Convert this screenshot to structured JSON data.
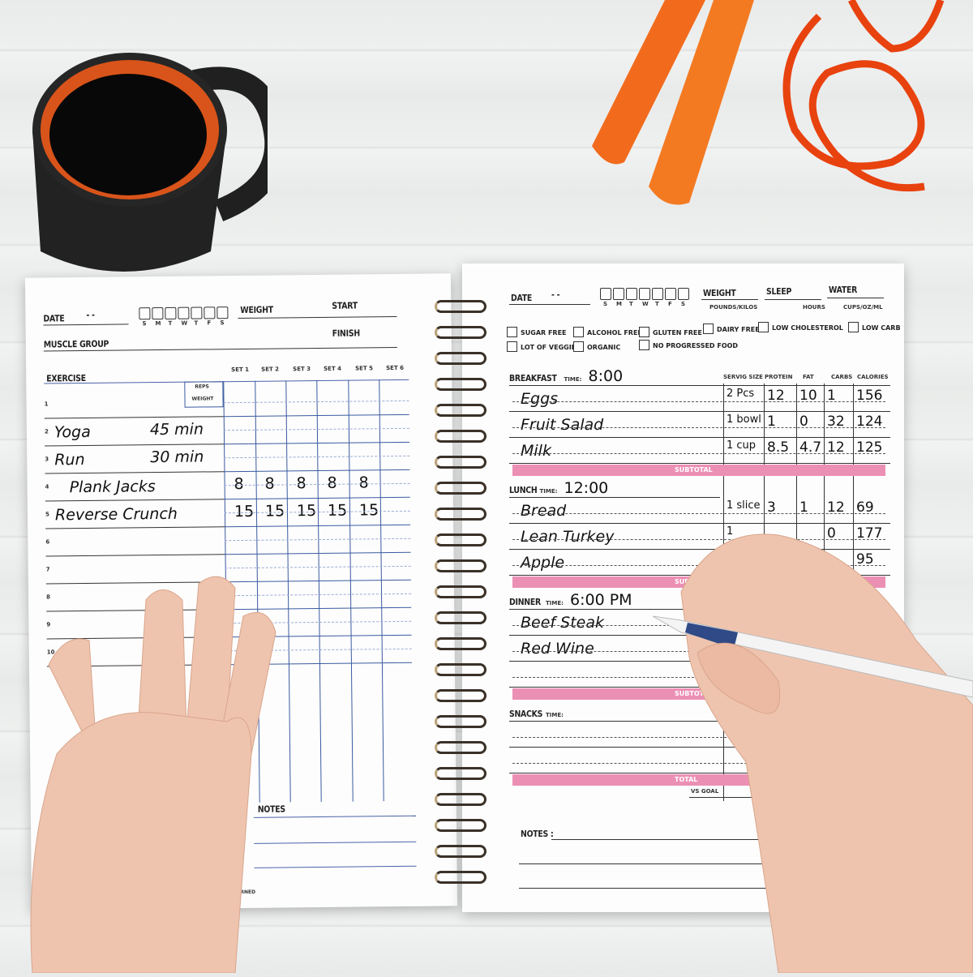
{
  "left_page": {
    "date_label": "DATE",
    "date_value": "-   -",
    "days": [
      "S",
      "M",
      "T",
      "W",
      "T",
      "F",
      "S"
    ],
    "weight_label": "WEIGHT",
    "start_label": "START",
    "finish_label": "FINISH",
    "muscle_group_label": "MUSCLE GROUP",
    "exercise_label": "EXERCISE",
    "set_headers": [
      "SET 1",
      "SET 2",
      "SET 3",
      "SET 4",
      "SET 5",
      "SET 6"
    ],
    "reps_label": "REPS",
    "weight_sub_label": "WEIGHT",
    "rows": [
      {
        "num": "1",
        "exercise": "",
        "detail": "",
        "sets": []
      },
      {
        "num": "2",
        "exercise": "Yoga",
        "detail": "45 min",
        "sets": []
      },
      {
        "num": "3",
        "exercise": "Run",
        "detail": "30 min",
        "sets": []
      },
      {
        "num": "4",
        "exercise": "Plank Jacks",
        "detail": "",
        "sets": [
          "8",
          "8",
          "8",
          "8",
          "8"
        ]
      },
      {
        "num": "5",
        "exercise": "Reverse  Crunch",
        "detail": "",
        "sets": [
          "15",
          "15",
          "15",
          "15",
          "15"
        ]
      },
      {
        "num": "6",
        "exercise": "",
        "detail": "",
        "sets": []
      },
      {
        "num": "7",
        "exercise": "",
        "detail": "",
        "sets": []
      },
      {
        "num": "8",
        "exercise": "",
        "detail": "",
        "sets": []
      },
      {
        "num": "9",
        "exercise": "",
        "detail": "",
        "sets": []
      },
      {
        "num": "10",
        "exercise": "",
        "detail": "",
        "sets": []
      }
    ],
    "notes_label": "NOTES",
    "burned_label": "BURNED"
  },
  "right_page": {
    "date_label": "DATE",
    "date_value": "-   -",
    "days": [
      "S",
      "M",
      "T",
      "W",
      "T",
      "F",
      "S"
    ],
    "weight_label": "WEIGHT",
    "weight_unit": "POUNDS/KILOS",
    "sleep_label": "SLEEP",
    "sleep_unit": "HOURS",
    "water_label": "WATER",
    "water_unit": "CUPS/OZ/ML",
    "checkboxes": [
      "SUGAR FREE",
      "ALCOHOL FREE",
      "GLUTEN FREE",
      "DAIRY FREE",
      "LOW CHOLESTEROL",
      "LOW CARB",
      "LOT OF VEGGIES",
      "ORGANIC",
      "NO PROGRESSED FOOD"
    ],
    "columns": [
      "SERVIG SIZE",
      "PROTEIN",
      "FAT",
      "CARBS",
      "CALORIES"
    ],
    "time_label": "TIME:",
    "subtotal_label": "SUBTOTAL",
    "total_label": "TOTAL",
    "vs_goal_label": "VS GOAL",
    "notes_label": "NOTES :",
    "meals": [
      {
        "name": "BREAKFAST",
        "time": "8:00",
        "items": [
          {
            "food": "Eggs",
            "values": [
              "2 Pcs",
              "12",
              "10",
              "1",
              "156"
            ]
          },
          {
            "food": "Fruit Salad",
            "values": [
              "1 bowl",
              "1",
              "0",
              "32",
              "124"
            ]
          },
          {
            "food": "Milk",
            "values": [
              "1 cup",
              "8.5",
              "4.7",
              "12",
              "125"
            ]
          }
        ]
      },
      {
        "name": "LUNCH",
        "time": "12:00",
        "items": [
          {
            "food": "Bread",
            "values": [
              "1 slice",
              "3",
              "1",
              "12",
              "69"
            ]
          },
          {
            "food": "Lean Turkey",
            "values": [
              "1",
              "",
              "",
              "0",
              "177"
            ]
          },
          {
            "food": "Apple",
            "values": [
              "",
              "",
              "",
              "",
              "95"
            ]
          }
        ]
      },
      {
        "name": "DINNER",
        "time": "6:00 PM",
        "items": [
          {
            "food": "Beef  Steak",
            "values": []
          },
          {
            "food": "Red Wine",
            "values": []
          }
        ]
      },
      {
        "name": "SNACKS",
        "time": "",
        "items": []
      }
    ]
  },
  "colors": {
    "accent_pink": "#ec8fb4",
    "grid_blue": "#3b5aa0",
    "rope_orange": "#f05a1a",
    "mug": "#1c1c1c"
  }
}
